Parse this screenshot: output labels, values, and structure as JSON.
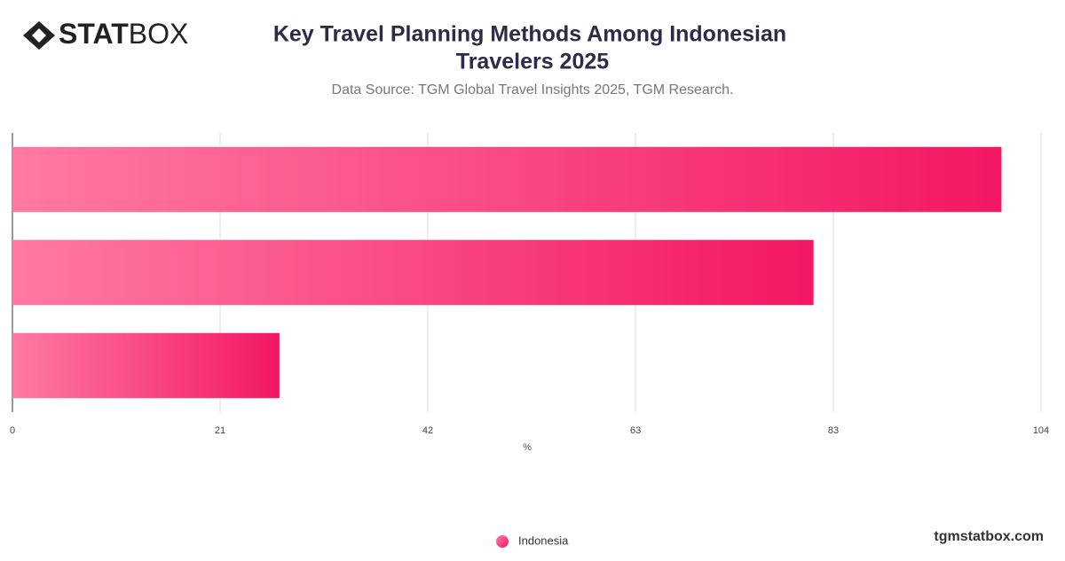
{
  "brand": {
    "bold": "STAT",
    "light": "BOX"
  },
  "footer": "tgmstatbox.com",
  "chart_data": {
    "type": "hbar",
    "title": [
      "Key Travel Planning Methods Among Indonesian",
      "Travelers 2025"
    ],
    "subtitle": "Data Source: TGM Global Travel Insights 2025, TGM Research.",
    "x_label": "%",
    "categories": [
      null,
      null,
      null
    ],
    "series": [
      {
        "name": "Indonesia",
        "color": "#f31764",
        "values": [
          100,
          81,
          27
        ]
      }
    ],
    "xlim": [
      0,
      104
    ],
    "xticks": [
      0,
      21,
      42,
      63,
      83,
      104
    ],
    "grid": true,
    "legend": "bottom"
  }
}
